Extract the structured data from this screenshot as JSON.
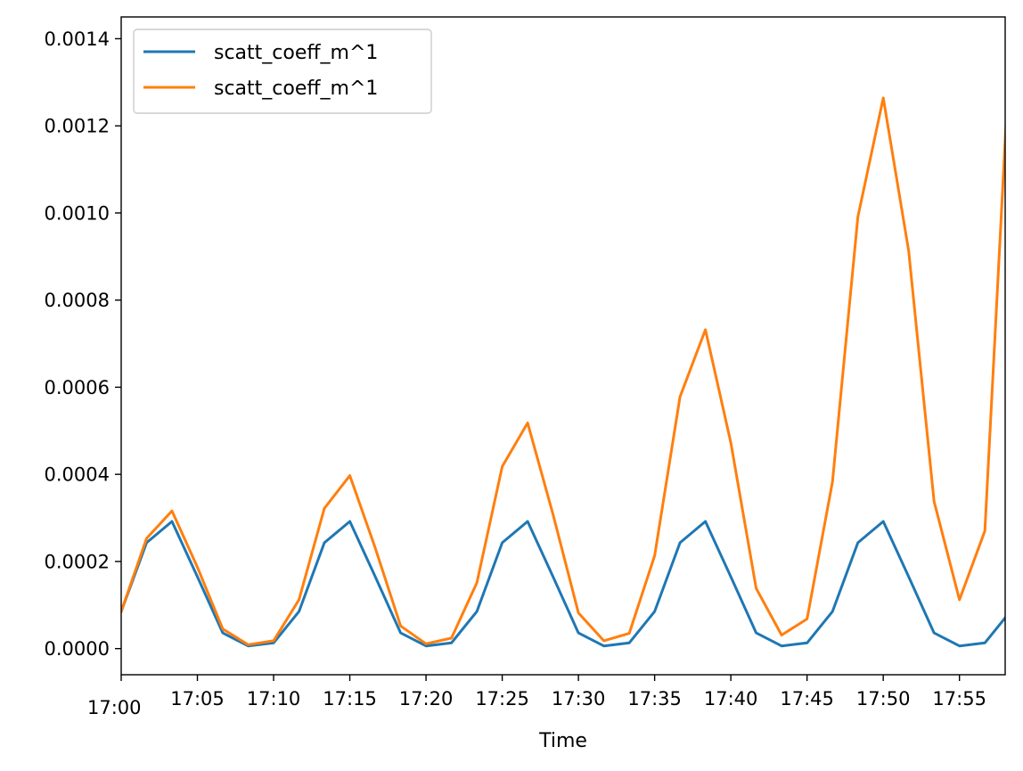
{
  "chart_data": {
    "type": "line",
    "xlabel": "Time",
    "ylabel": "",
    "xlim": [
      "17:00",
      "17:58"
    ],
    "ylim": [
      -6e-05,
      0.00145
    ],
    "x_ticks": [
      "17:00",
      "17:05",
      "17:10",
      "17:15",
      "17:20",
      "17:25",
      "17:30",
      "17:35",
      "17:40",
      "17:45",
      "17:50",
      "17:55"
    ],
    "y_ticks": [
      "0.0000",
      "0.0002",
      "0.0004",
      "0.0006",
      "0.0008",
      "0.0010",
      "0.0012",
      "0.0014"
    ],
    "y_tick_values": [
      0,
      0.0002,
      0.0004,
      0.0006,
      0.0008,
      0.001,
      0.0012,
      0.0014
    ],
    "legend_position": "top-left",
    "grid": false,
    "x": [
      "17:00",
      "17:01:40",
      "17:03:20",
      "17:05:00",
      "17:06:40",
      "17:08:20",
      "17:10:00",
      "17:11:40",
      "17:13:20",
      "17:15:00",
      "17:16:40",
      "17:18:20",
      "17:20:00",
      "17:21:40",
      "17:23:20",
      "17:25:00",
      "17:26:40",
      "17:28:20",
      "17:30:00",
      "17:31:40",
      "17:33:20",
      "17:35:00",
      "17:36:40",
      "17:38:20",
      "17:40:00",
      "17:41:40",
      "17:43:20",
      "17:45:00",
      "17:46:40",
      "17:48:20",
      "17:50:00",
      "17:51:40",
      "17:53:20",
      "17:55:00",
      "17:56:40",
      "17:58:20"
    ],
    "series": [
      {
        "name": "scatt_coeff_m^1",
        "color": "#1f77b4",
        "values": [
          8.5e-05,
          0.000243,
          0.000292,
          0.000165,
          3.6e-05,
          6e-06,
          1.3e-05,
          8.5e-05,
          0.000243,
          0.000292,
          0.000165,
          3.6e-05,
          6e-06,
          1.3e-05,
          8.5e-05,
          0.000243,
          0.000292,
          0.000165,
          3.6e-05,
          6e-06,
          1.3e-05,
          8.5e-05,
          0.000243,
          0.000292,
          0.000165,
          3.6e-05,
          6e-06,
          1.3e-05,
          8.5e-05,
          0.000243,
          0.000292,
          0.000165,
          3.6e-05,
          6e-06,
          1.3e-05,
          8.5e-05
        ]
      },
      {
        "name": "scatt_coeff_m^1",
        "color": "#ff7f0e",
        "values": [
          8.5e-05,
          0.000253,
          0.000316,
          0.000187,
          4.5e-05,
          9e-06,
          1.8e-05,
          0.000112,
          0.000322,
          0.000397,
          0.000231,
          5.2e-05,
          1.1e-05,
          2.4e-05,
          0.000151,
          0.000418,
          0.000518,
          0.000308,
          8.2e-05,
          1.8e-05,
          3.5e-05,
          0.000213,
          0.000578,
          0.000732,
          0.000473,
          0.000138,
          3.1e-05,
          6.8e-05,
          0.000383,
          0.000991,
          0.001264,
          0.000913,
          0.000338,
          0.000112,
          0.00027,
          0.00139
        ]
      }
    ]
  }
}
